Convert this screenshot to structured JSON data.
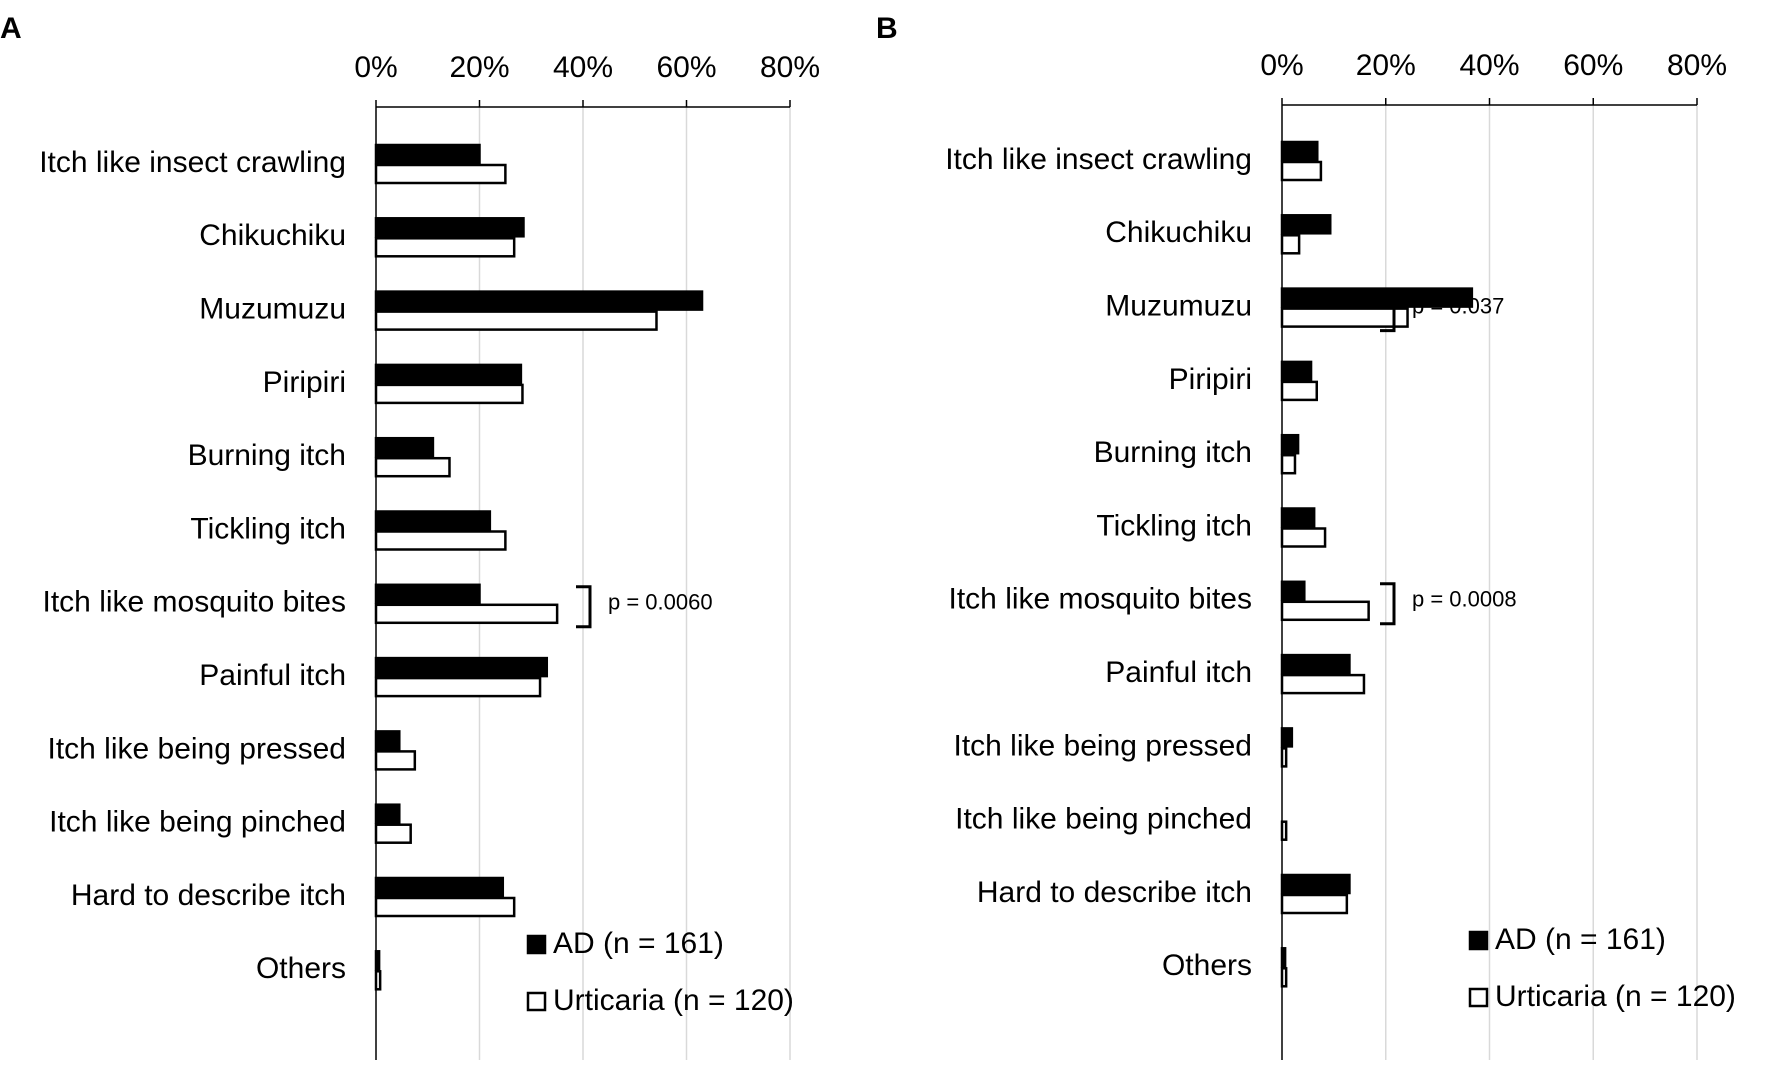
{
  "colors": {
    "ad": "#000000",
    "urticaria": "#ffffff",
    "grid": "#d9d9d9",
    "axis": "#000000"
  },
  "chart_data": [
    {
      "panel": "A",
      "type": "bar",
      "orientation": "horizontal",
      "xlim": [
        0,
        80
      ],
      "xticks": [
        "0%",
        "20%",
        "40%",
        "60%",
        "80%"
      ],
      "grid": true,
      "legend_position": "bottom-right",
      "categories": [
        "Itch like insect crawling",
        "Chikuchiku",
        "Muzumuzu",
        "Piripiri",
        "Burning itch",
        "Tickling itch",
        "Itch like mosquito bites",
        "Painful itch",
        "Itch like being pressed",
        "Itch like being pinched",
        "Hard to describe itch",
        "Others"
      ],
      "series": [
        {
          "name": "AD (n = 161)",
          "values": [
            20,
            28.5,
            63,
            28,
            11,
            22,
            20,
            33,
            4.5,
            4.5,
            24.5,
            0.6
          ]
        },
        {
          "name": "Urticaria (n = 120)",
          "values": [
            25,
            26.7,
            54.2,
            28.3,
            14.2,
            25,
            35,
            31.7,
            7.5,
            6.7,
            26.7,
            0.8
          ]
        }
      ],
      "annotations": [
        {
          "category": "Itch like mosquito bites",
          "text": "p = 0.0060"
        }
      ]
    },
    {
      "panel": "B",
      "type": "bar",
      "orientation": "horizontal",
      "xlim": [
        0,
        80
      ],
      "xticks": [
        "0%",
        "20%",
        "40%",
        "60%",
        "80%"
      ],
      "grid": true,
      "legend_position": "bottom-right",
      "categories": [
        "Itch like insect crawling",
        "Chikuchiku",
        "Muzumuzu",
        "Piripiri",
        "Burning itch",
        "Tickling itch",
        "Itch like mosquito bites",
        "Painful itch",
        "Itch like being pressed",
        "Itch like being pinched",
        "Hard to describe itch",
        "Others"
      ],
      "series": [
        {
          "name": "AD (n = 161)",
          "values": [
            6.8,
            9.3,
            36.6,
            5.6,
            3.1,
            6.2,
            4.3,
            13,
            1.9,
            0,
            13,
            0.6
          ]
        },
        {
          "name": "Urticaria (n = 120)",
          "values": [
            7.5,
            3.3,
            24.2,
            6.7,
            2.5,
            8.3,
            16.7,
            15.8,
            0.8,
            0.8,
            12.5,
            0.8
          ]
        }
      ],
      "annotations": [
        {
          "category": "Muzumuzu",
          "text": "p = 0.037"
        },
        {
          "category": "Itch like mosquito bites",
          "text": "p = 0.0008"
        }
      ]
    }
  ]
}
